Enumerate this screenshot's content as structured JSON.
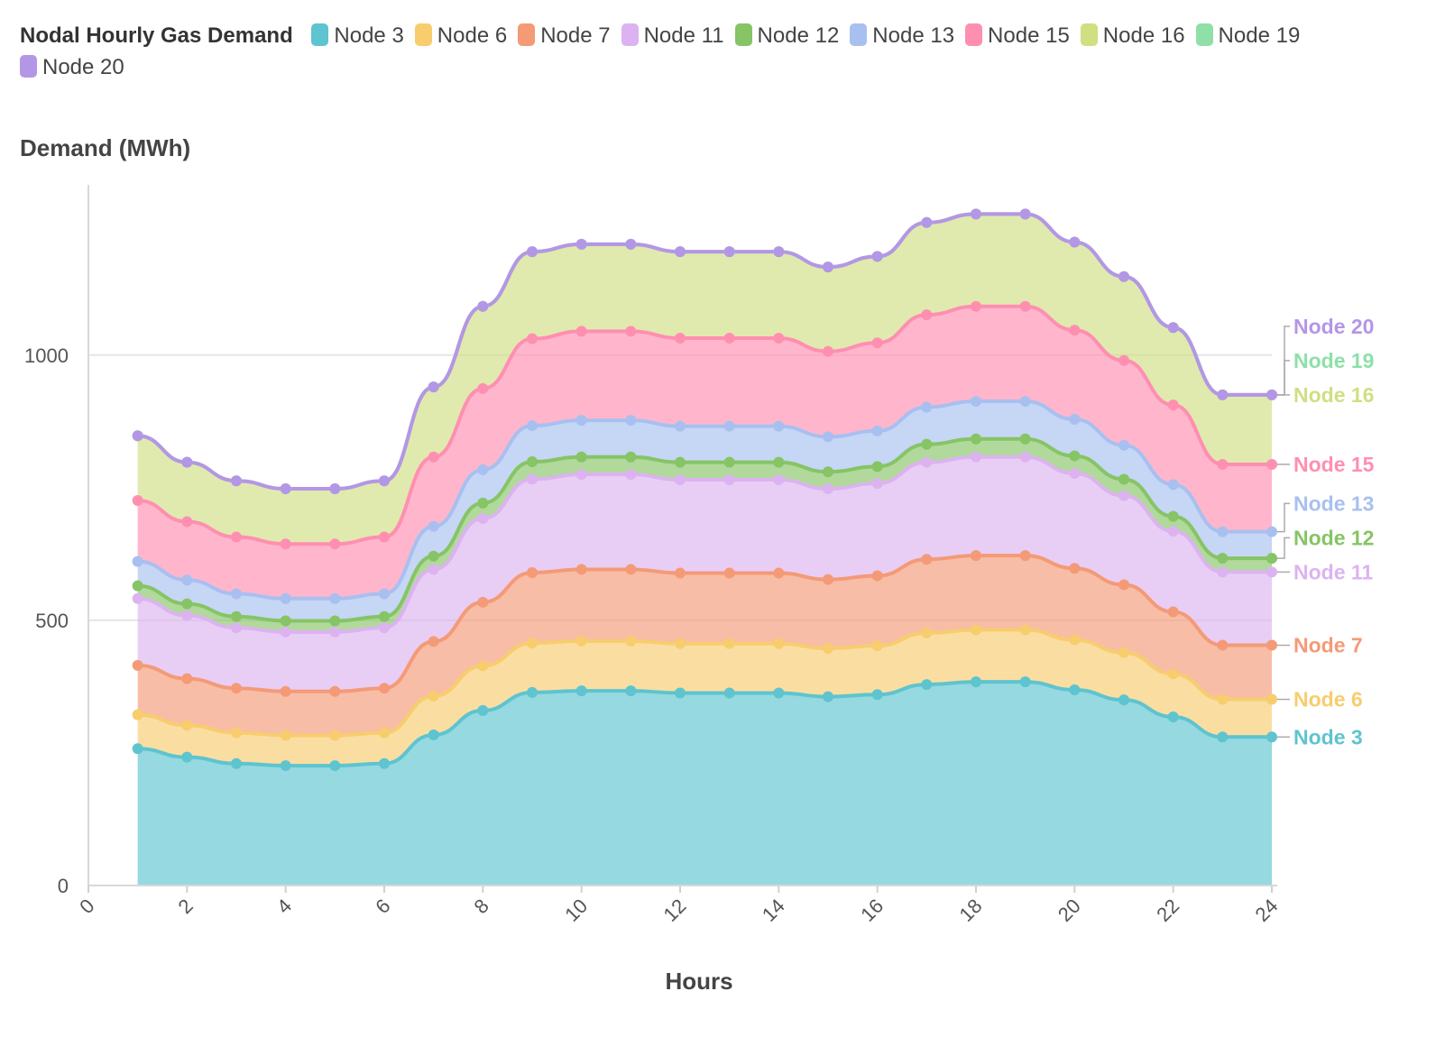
{
  "chart_data": {
    "type": "area",
    "title": "Nodal Hourly Gas Demand",
    "ylabel": "Demand (MWh)",
    "xlabel": "Hours",
    "x": [
      1,
      2,
      3,
      4,
      5,
      6,
      7,
      8,
      9,
      10,
      11,
      12,
      13,
      14,
      15,
      16,
      17,
      18,
      19,
      20,
      21,
      22,
      23,
      24
    ],
    "xlim": [
      0,
      24
    ],
    "ylim": [
      0,
      1270
    ],
    "xticks": [
      "0",
      "2",
      "4",
      "6",
      "8",
      "10",
      "12",
      "14",
      "16",
      "18",
      "20",
      "22",
      "24"
    ],
    "yticks": [
      "0",
      "500",
      "1000"
    ],
    "stacked": true,
    "grid": true,
    "legend_position": "top",
    "series": [
      {
        "name": "Node 3",
        "color": "#5ec4cf",
        "values": [
          258,
          242,
          230,
          226,
          226,
          230,
          284,
          330,
          364,
          367,
          367,
          363,
          363,
          363,
          356,
          360,
          379,
          384,
          384,
          369,
          350,
          318,
          280,
          280
        ]
      },
      {
        "name": "Node 6",
        "color": "#f7cd6e",
        "values": [
          64,
          60,
          58,
          57,
          57,
          58,
          73,
          84,
          93,
          94,
          94,
          93,
          93,
          93,
          91,
          92,
          97,
          98,
          98,
          94,
          89,
          81,
          71,
          71
        ]
      },
      {
        "name": "Node 7",
        "color": "#f49a77",
        "values": [
          93,
          88,
          84,
          83,
          83,
          84,
          103,
          120,
          133,
          135,
          135,
          133,
          133,
          133,
          130,
          132,
          139,
          140,
          140,
          135,
          128,
          117,
          102,
          102
        ]
      },
      {
        "name": "Node 11",
        "color": "#dcb3f0",
        "values": [
          126,
          119,
          114,
          112,
          112,
          114,
          136,
          158,
          176,
          179,
          179,
          176,
          176,
          176,
          171,
          174,
          183,
          186,
          186,
          179,
          168,
          152,
          138,
          138
        ]
      },
      {
        "name": "Node 12",
        "color": "#86c466",
        "values": [
          24,
          22,
          21,
          21,
          21,
          21,
          25,
          29,
          33,
          33,
          33,
          33,
          33,
          33,
          32,
          32,
          34,
          34,
          34,
          33,
          31,
          28,
          26,
          26
        ]
      },
      {
        "name": "Node 13",
        "color": "#a8c0f0",
        "values": [
          46,
          45,
          43,
          42,
          42,
          43,
          56,
          63,
          68,
          69,
          69,
          68,
          68,
          68,
          66,
          67,
          70,
          71,
          71,
          69,
          64,
          60,
          50,
          50
        ]
      },
      {
        "name": "Node 15",
        "color": "#ff8fb1",
        "values": [
          115,
          110,
          107,
          103,
          103,
          107,
          131,
          153,
          164,
          168,
          168,
          166,
          166,
          166,
          161,
          166,
          174,
          179,
          179,
          168,
          160,
          150,
          127,
          127
        ]
      },
      {
        "name": "Node 16",
        "color": "#cfdf82",
        "values": [
          122,
          112,
          106,
          104,
          104,
          106,
          132,
          155,
          164,
          164,
          164,
          163,
          163,
          163,
          159,
          163,
          174,
          174,
          174,
          166,
          158,
          146,
          131,
          131
        ]
      },
      {
        "name": "Node 19",
        "color": "#8ee0a8",
        "values": [
          0,
          0,
          0,
          0,
          0,
          0,
          0,
          0,
          0,
          0,
          0,
          0,
          0,
          0,
          0,
          0,
          0,
          0,
          0,
          0,
          0,
          0,
          0,
          0
        ]
      },
      {
        "name": "Node 20",
        "color": "#b496e6",
        "values": [
          0,
          0,
          0,
          0,
          0,
          0,
          0,
          0,
          0,
          0,
          0,
          0,
          0,
          0,
          0,
          0,
          0,
          0,
          0,
          0,
          0,
          0,
          0,
          0
        ]
      }
    ]
  }
}
